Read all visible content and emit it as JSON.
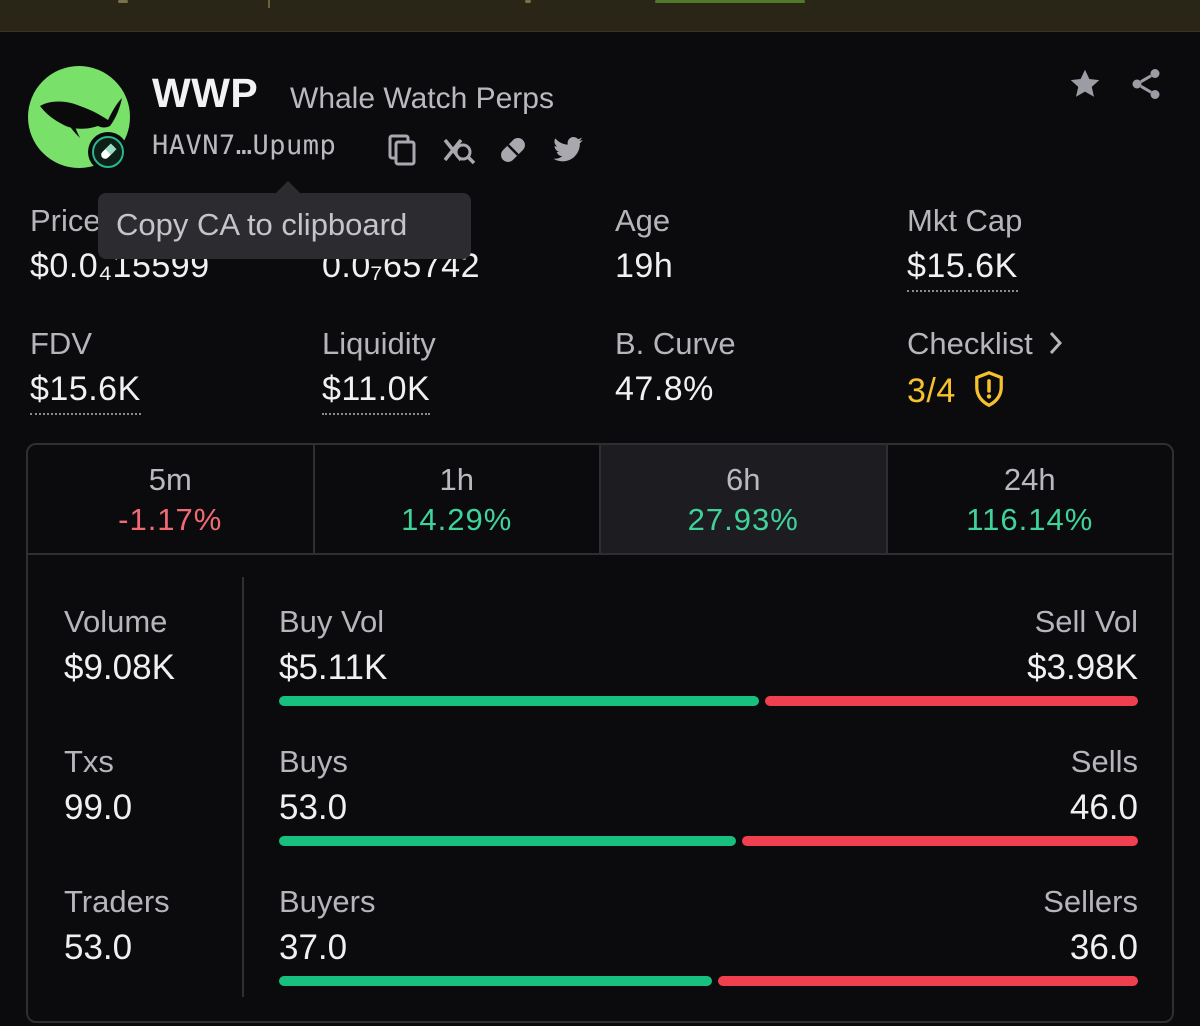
{
  "token": {
    "ticker": "WWP",
    "name": "Whale Watch Perps",
    "contract_short": "HAVN7…Upump",
    "avatar_icon": "whale-icon",
    "badge_icon": "pill-icon"
  },
  "tooltip": {
    "text": "Copy CA to clipboard"
  },
  "stats": {
    "price_label": "Price",
    "price_value": "$0.0₄15599",
    "price2_label": "",
    "price2_value": "0.0₇65742",
    "age_label": "Age",
    "age_value": "19h",
    "mktcap_label": "Mkt Cap",
    "mktcap_value": "$15.6K",
    "fdv_label": "FDV",
    "fdv_value": "$15.6K",
    "liquidity_label": "Liquidity",
    "liquidity_value": "$11.0K",
    "curve_label": "B. Curve",
    "curve_value": "47.8%",
    "checklist_label": "Checklist",
    "checklist_value": "3/4"
  },
  "timeframes": [
    {
      "label": "5m",
      "change": "-1.17%",
      "direction": "down"
    },
    {
      "label": "1h",
      "change": "14.29%",
      "direction": "up"
    },
    {
      "label": "6h",
      "change": "27.93%",
      "direction": "up",
      "active": true
    },
    {
      "label": "24h",
      "change": "116.14%",
      "direction": "up"
    }
  ],
  "activity": {
    "volume_label": "Volume",
    "volume_value": "$9.08K",
    "txs_label": "Txs",
    "txs_value": "99.0",
    "traders_label": "Traders",
    "traders_value": "53.0",
    "buy_vol_label": "Buy Vol",
    "buy_vol_value": "$5.11K",
    "sell_vol_label": "Sell Vol",
    "sell_vol_value": "$3.98K",
    "buys_label": "Buys",
    "buys_value": "53.0",
    "sells_label": "Sells",
    "sells_value": "46.0",
    "buyers_label": "Buyers",
    "buyers_value": "37.0",
    "sellers_label": "Sellers",
    "sellers_value": "36.0",
    "buy_vol_share": 0.562,
    "buys_share": 0.535,
    "buyers_share": 0.507
  },
  "colors": {
    "accent_green": "#3fd39a",
    "accent_red": "#f06a74",
    "warning_yellow": "#f5c22d",
    "background": "#0b0b0e"
  }
}
